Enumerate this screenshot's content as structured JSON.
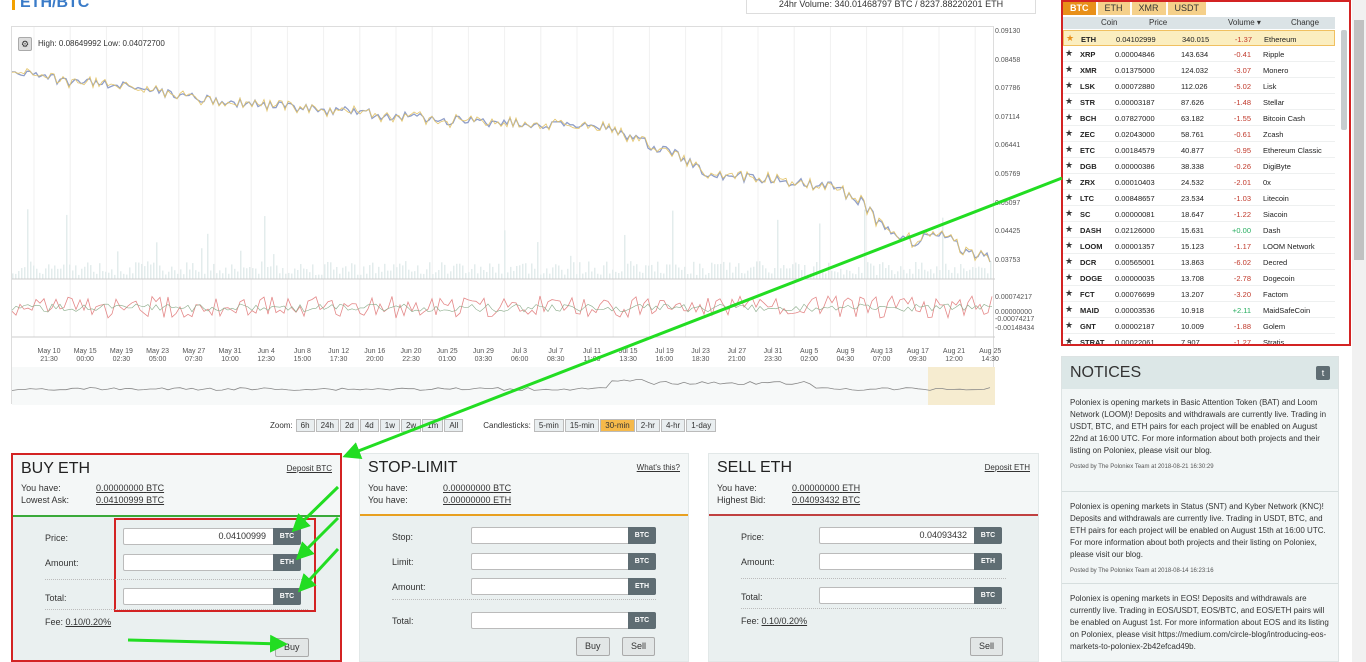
{
  "pair_title": "ETH/BTC",
  "volume_label": "24hr Volume: 340.01468797 BTC / 8237.88220201 ETH",
  "chart": {
    "high_low": "High: 0.08649992   Low: 0.04072700",
    "price_ticks": [
      "0.09130",
      "0.08458",
      "0.07786",
      "0.07114",
      "0.06441",
      "0.05769",
      "0.05097",
      "0.04425",
      "0.03753"
    ],
    "osc_ticks": [
      "0.00074217",
      "0.00000000",
      "-0.00074217",
      "-0.00148434"
    ],
    "x_labels": [
      [
        "May 10",
        "21:30"
      ],
      [
        "May 15",
        "00:00"
      ],
      [
        "May 19",
        "02:30"
      ],
      [
        "May 23",
        "05:00"
      ],
      [
        "May 27",
        "07:30"
      ],
      [
        "May 31",
        "10:00"
      ],
      [
        "Jun 4",
        "12:30"
      ],
      [
        "Jun 8",
        "15:00"
      ],
      [
        "Jun 12",
        "17:30"
      ],
      [
        "Jun 16",
        "20:00"
      ],
      [
        "Jun 20",
        "22:30"
      ],
      [
        "Jun 25",
        "01:00"
      ],
      [
        "Jun 29",
        "03:30"
      ],
      [
        "Jul 3",
        "06:00"
      ],
      [
        "Jul 7",
        "08:30"
      ],
      [
        "Jul 11",
        "11:00"
      ],
      [
        "Jul 15",
        "13:30"
      ],
      [
        "Jul 19",
        "16:00"
      ],
      [
        "Jul 23",
        "18:30"
      ],
      [
        "Jul 27",
        "21:00"
      ],
      [
        "Jul 31",
        "23:30"
      ],
      [
        "Aug 5",
        "02:00"
      ],
      [
        "Aug 9",
        "04:30"
      ],
      [
        "Aug 13",
        "07:00"
      ],
      [
        "Aug 17",
        "09:30"
      ],
      [
        "Aug 21",
        "12:00"
      ],
      [
        "Aug 25",
        "14:30"
      ]
    ],
    "zoom_label": "Zoom:",
    "zoom": [
      "6h",
      "24h",
      "2d",
      "4d",
      "1w",
      "2w",
      "1m",
      "All"
    ],
    "candle_label": "Candlesticks:",
    "candles": [
      "5-min",
      "15-min",
      "30-min",
      "2-hr",
      "4-hr",
      "1-day"
    ],
    "candle_active": "30-min"
  },
  "buy": {
    "title": "BUY ETH",
    "deposit": "Deposit BTC",
    "have_label": "You have:",
    "have_value": "0.00000000",
    "have_cur": "BTC",
    "ask_label": "Lowest Ask:",
    "ask_value": "0.04100999",
    "ask_cur": "BTC",
    "price_label": "Price:",
    "price_value": "0.04100999",
    "amount_label": "Amount:",
    "total_label": "Total:",
    "fee_label": "Fee:",
    "fee_value": "0.10/0.20%",
    "button": "Buy"
  },
  "stop": {
    "title": "STOP-LIMIT",
    "whats": "What's this?",
    "have_label": "You have:",
    "have_btc": "0.00000000",
    "have_eth": "0.00000000",
    "stop_label": "Stop:",
    "limit_label": "Limit:",
    "amount_label": "Amount:",
    "total_label": "Total:",
    "buy_btn": "Buy",
    "sell_btn": "Sell"
  },
  "sell": {
    "title": "SELL ETH",
    "deposit": "Deposit ETH",
    "have_label": "You have:",
    "have_value": "0.00000000",
    "have_cur": "ETH",
    "bid_label": "Highest Bid:",
    "bid_value": "0.04093432",
    "bid_cur": "BTC",
    "price_label": "Price:",
    "price_value": "0.04093432",
    "amount_label": "Amount:",
    "total_label": "Total:",
    "fee_label": "Fee:",
    "fee_value": "0.10/0.20%",
    "button": "Sell"
  },
  "currency": {
    "btc": "BTC",
    "eth": "ETH"
  },
  "market": {
    "tabs": [
      "BTC",
      "ETH",
      "XMR",
      "USDT"
    ],
    "headers": {
      "coin": "Coin",
      "price": "Price",
      "volume": "Volume ▾",
      "change": "Change"
    },
    "rows": [
      {
        "coin": "ETH",
        "price": "0.04102999",
        "vol": "340.015",
        "chg": "-1.37",
        "name": "Ethereum"
      },
      {
        "coin": "XRP",
        "price": "0.00004846",
        "vol": "143.634",
        "chg": "-0.41",
        "name": "Ripple"
      },
      {
        "coin": "XMR",
        "price": "0.01375000",
        "vol": "124.032",
        "chg": "-3.07",
        "name": "Monero"
      },
      {
        "coin": "LSK",
        "price": "0.00072880",
        "vol": "112.026",
        "chg": "-5.02",
        "name": "Lisk"
      },
      {
        "coin": "STR",
        "price": "0.00003187",
        "vol": "87.626",
        "chg": "-1.48",
        "name": "Stellar"
      },
      {
        "coin": "BCH",
        "price": "0.07827000",
        "vol": "63.182",
        "chg": "-1.55",
        "name": "Bitcoin Cash"
      },
      {
        "coin": "ZEC",
        "price": "0.02043000",
        "vol": "58.761",
        "chg": "-0.61",
        "name": "Zcash"
      },
      {
        "coin": "ETC",
        "price": "0.00184579",
        "vol": "40.877",
        "chg": "-0.95",
        "name": "Ethereum Classic"
      },
      {
        "coin": "DGB",
        "price": "0.00000386",
        "vol": "38.338",
        "chg": "-0.26",
        "name": "DigiByte"
      },
      {
        "coin": "ZRX",
        "price": "0.00010403",
        "vol": "24.532",
        "chg": "-2.01",
        "name": "0x"
      },
      {
        "coin": "LTC",
        "price": "0.00848657",
        "vol": "23.534",
        "chg": "-1.03",
        "name": "Litecoin"
      },
      {
        "coin": "SC",
        "price": "0.00000081",
        "vol": "18.647",
        "chg": "-1.22",
        "name": "Siacoin"
      },
      {
        "coin": "DASH",
        "price": "0.02126000",
        "vol": "15.631",
        "chg": "+0.00",
        "name": "Dash"
      },
      {
        "coin": "LOOM",
        "price": "0.00001357",
        "vol": "15.123",
        "chg": "-1.17",
        "name": "LOOM Network"
      },
      {
        "coin": "DCR",
        "price": "0.00565001",
        "vol": "13.863",
        "chg": "-6.02",
        "name": "Decred"
      },
      {
        "coin": "DOGE",
        "price": "0.00000035",
        "vol": "13.708",
        "chg": "-2.78",
        "name": "Dogecoin"
      },
      {
        "coin": "FCT",
        "price": "0.00076699",
        "vol": "13.207",
        "chg": "-3.20",
        "name": "Factom"
      },
      {
        "coin": "MAID",
        "price": "0.00003536",
        "vol": "10.918",
        "chg": "+2.11",
        "name": "MaidSafeCoin"
      },
      {
        "coin": "GNT",
        "price": "0.00002187",
        "vol": "10.009",
        "chg": "-1.88",
        "name": "Golem"
      },
      {
        "coin": "STRAT",
        "price": "0.00022061",
        "vol": "7.907",
        "chg": "-1.27",
        "name": "Stratis"
      }
    ]
  },
  "notices": {
    "title": "NOTICES",
    "items": [
      {
        "text": "Poloniex is opening markets in Basic Attention Token (BAT) and Loom Network (LOOM)! Deposits and withdrawals are currently live. Trading in USDT, BTC, and ETH pairs for each project will be enabled on August 22nd at 16:00 UTC. For more information about both projects and their listing on Poloniex, please visit our blog.",
        "meta": "Posted by The Poloniex Team at 2018-08-21 16:30:29"
      },
      {
        "text": "Poloniex is opening markets in Status (SNT) and Kyber Network (KNC)! Deposits and withdrawals are currently live. Trading in USDT, BTC, and ETH pairs for each project will be enabled on August 15th at 16:00 UTC. For more information about both projects and their listing on Poloniex, please visit our blog.",
        "meta": "Posted by The Poloniex Team at 2018-08-14 16:23:16"
      },
      {
        "text": "Poloniex is opening markets in EOS! Deposits and withdrawals are currently live. Trading in EOS/USDT, EOS/BTC, and EOS/ETH pairs will be enabled on August 1st. For more information about EOS and its listing on Poloniex, please visit https://medium.com/circle-blog/introducing-eos-markets-to-poloniex-2b42efcad49b.",
        "meta": ""
      }
    ]
  },
  "colors": {
    "accent": "#f3a100",
    "annotation": "#d32323",
    "arrow": "#22dd22",
    "line": "#8f9ec8"
  }
}
